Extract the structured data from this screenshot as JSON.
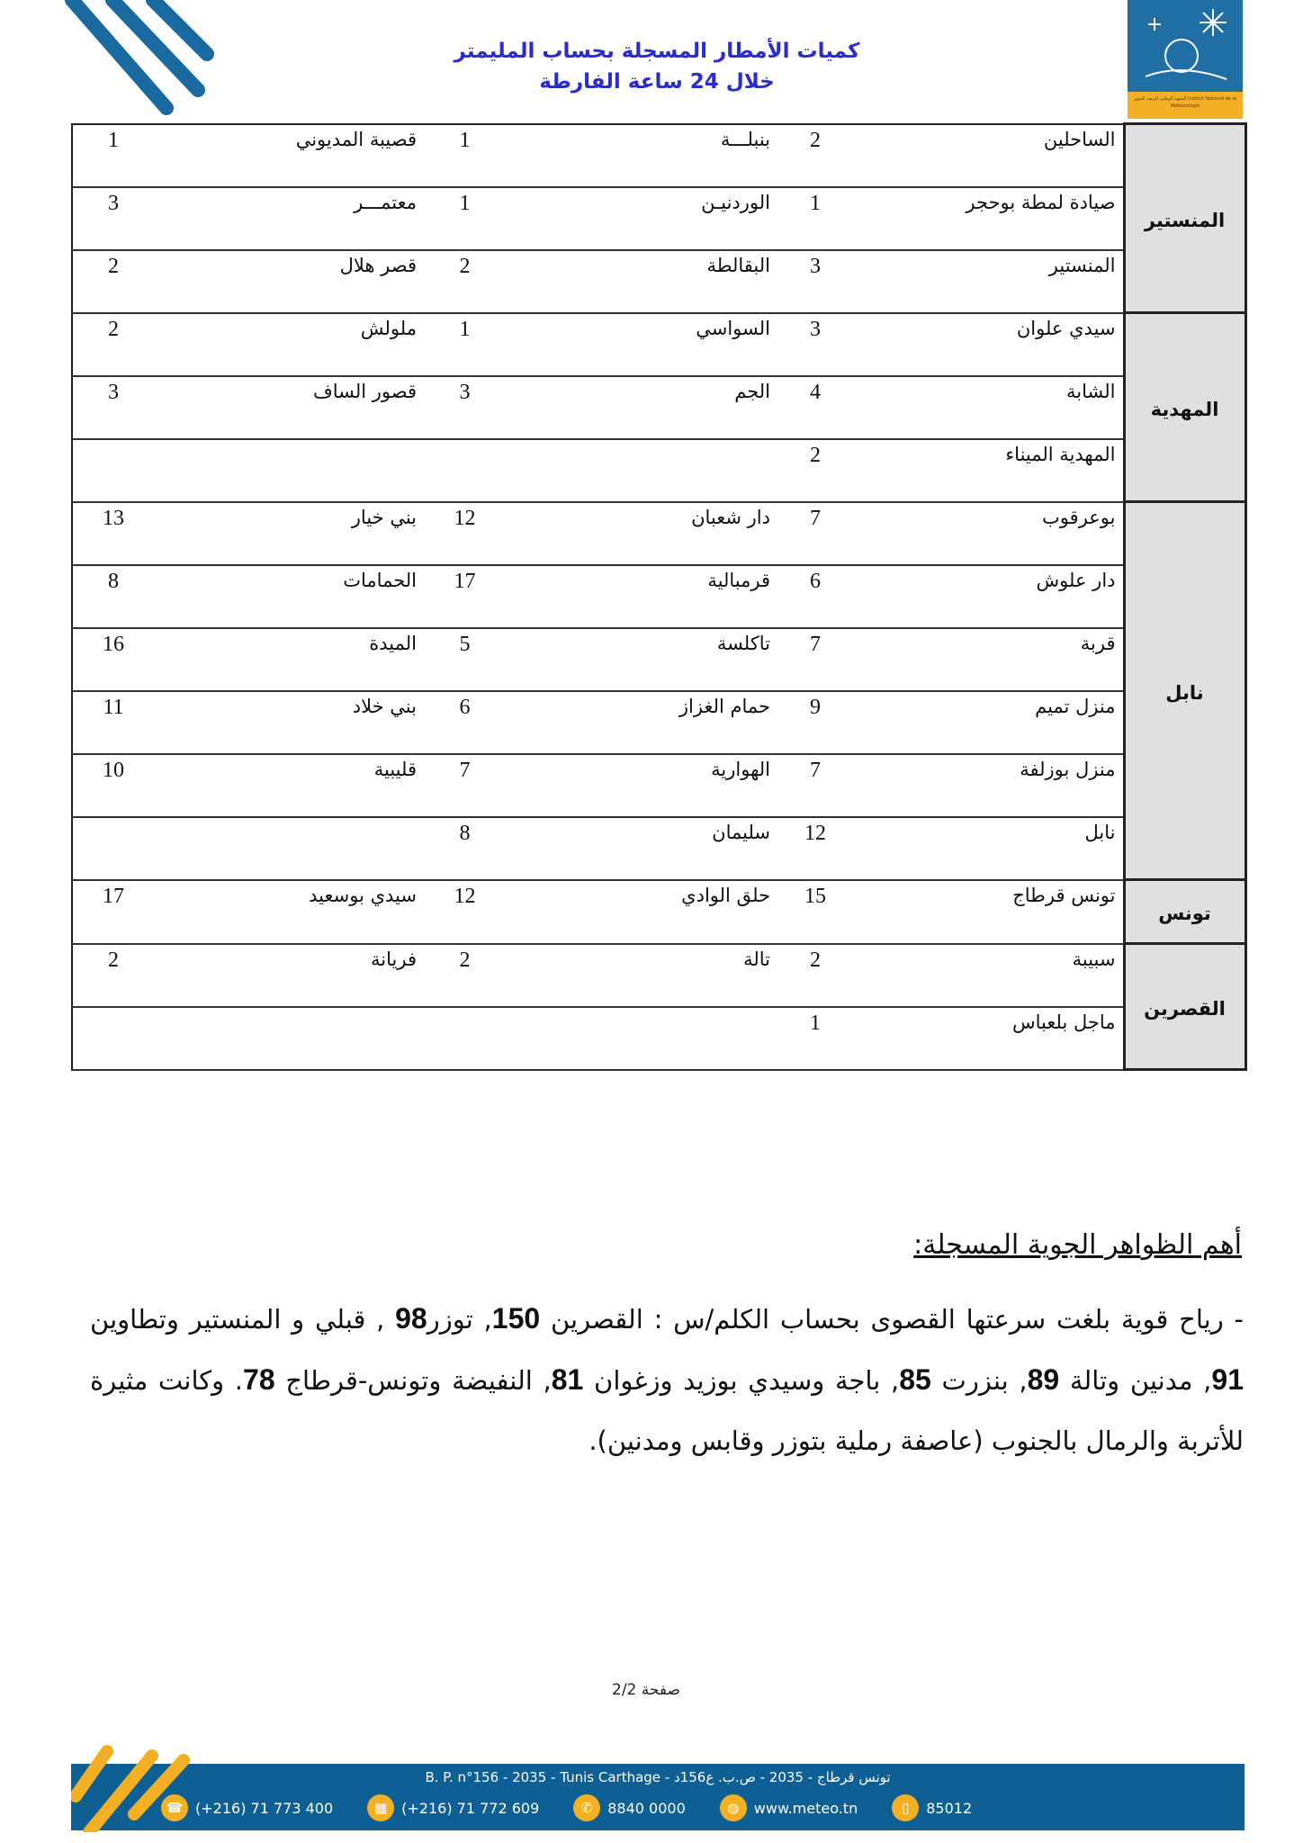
{
  "header": {
    "title_line1": "كميات الأمطار المسجلة بحساب المليمتر",
    "title_line2": "خلال 24 ساعة الفارطة",
    "logo_caption": "المعهد الوطني للرصد الجوي Institut National de la Météorologie"
  },
  "table": {
    "rows": [
      {
        "region": "المنستير",
        "rowspan": 3,
        "cells": [
          "الساحلين",
          "2",
          "بنبلـــة",
          "1",
          "قصيبة المديوني",
          "1"
        ]
      },
      {
        "cells": [
          "صيادة لمطة بوحجر",
          "1",
          "الوردنيـن",
          "1",
          "معتمـــر",
          "3"
        ]
      },
      {
        "cells": [
          "المنستير",
          "3",
          "البقالطة",
          "2",
          "قصر هلال",
          "2"
        ]
      },
      {
        "region": "المهدية",
        "rowspan": 3,
        "cells": [
          "سيدي علوان",
          "3",
          "السواسي",
          "1",
          "ملولش",
          "2"
        ]
      },
      {
        "cells": [
          "الشابة",
          "4",
          "الجم",
          "3",
          "قصور الساف",
          "3"
        ]
      },
      {
        "cells": [
          "المهدية الميناء",
          "2",
          "",
          "",
          "",
          ""
        ]
      },
      {
        "region": "نابل",
        "rowspan": 6,
        "cells": [
          "بوعرقوب",
          "7",
          "دار شعبان",
          "12",
          "بني خيار",
          "13"
        ]
      },
      {
        "cells": [
          "دار علوش",
          "6",
          "قرمبالية",
          "17",
          "الحمامات",
          "8"
        ]
      },
      {
        "cells": [
          "قربة",
          "7",
          "تاكلسة",
          "5",
          "الميدة",
          "16"
        ]
      },
      {
        "cells": [
          "منزل تميم",
          "9",
          "حمام الغزاز",
          "6",
          "بني خلاد",
          "11"
        ]
      },
      {
        "cells": [
          "منزل بوزلفة",
          "7",
          "الهوارية",
          "7",
          "قليبية",
          "10"
        ]
      },
      {
        "cells": [
          "نابل",
          "12",
          "سليمان",
          "8",
          "",
          ""
        ]
      },
      {
        "region": "تونس",
        "rowspan": 1,
        "cells": [
          "تونس قرطاج",
          "15",
          "حلق الوادي",
          "12",
          "سيدي بوسعيد",
          "17"
        ]
      },
      {
        "region": "القصرين",
        "rowspan": 2,
        "cells": [
          "سبيبة",
          "2",
          "تالة",
          "2",
          "فريانة",
          "2"
        ]
      },
      {
        "cells": [
          "ماجل بلعباس",
          "1",
          "",
          "",
          "",
          ""
        ]
      }
    ]
  },
  "phenomena": {
    "heading": "أهم الظواهر الجوية المسجلة:",
    "p1": "- رياح قوية بلغت سرعتها القصوى بحساب الكلم/س :  القصرين ",
    "v1": "150",
    "p2": ", توزر",
    "v2": "98",
    "p3": " , قبلي و المنستير وتطاوين ",
    "v3": "91",
    "p4": ", مدنين وتالة ",
    "v4": "89",
    "p5": ", بنزرت ",
    "v5": "85",
    "p6": ",  باجة وسيدي بوزيد وزغوان ",
    "v6": "81",
    "p7": ", النفيضة وتونس-قرطاج ",
    "v7": "78",
    "p8": ". وكانت مثيرة للأتربة والرمال بالجنوب (عاصفة رملية بتوزر وقابس ومدنين)."
  },
  "page_number": "صفحة 2/2",
  "footer": {
    "address": "B. P. n°156 - 2035 - Tunis Carthage - تونس قرطاج - 2035 - ص.ب. ع156د",
    "phone": "(+216) 71 773 400",
    "fax": "(+216) 71 772 609",
    "hotline": "8840 0000",
    "website": "www.meteo.tn",
    "sms": "85012"
  },
  "colors": {
    "brand_blue": "#0e5f93",
    "brand_yellow": "#f4b024",
    "title_blue": "#2b2bd0",
    "region_bg": "#e0e0e0"
  }
}
